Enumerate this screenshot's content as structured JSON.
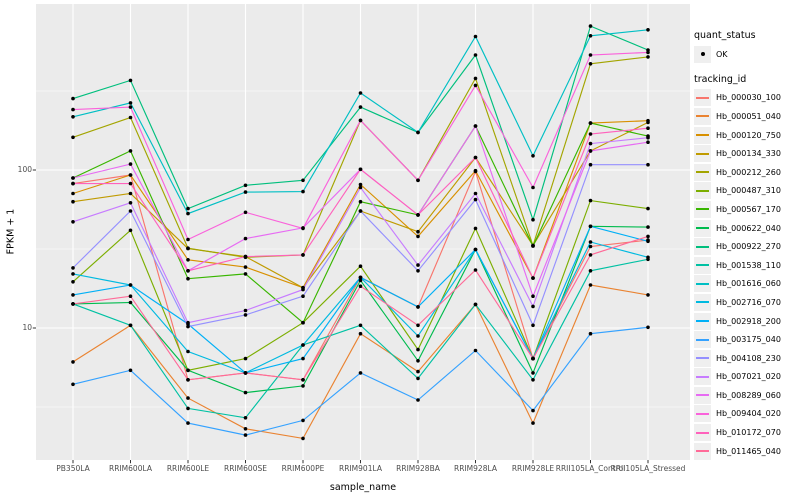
{
  "chart_data": {
    "type": "line",
    "title": "",
    "xlabel": "sample_name",
    "ylabel": "FPKM + 1",
    "y_scale": "log10",
    "grid": true,
    "panel_bg": "#ebebeb",
    "grid_color": "#ffffff",
    "point_color": "#000000",
    "y_major_ticks": [
      10,
      100
    ],
    "y_minor_ticks": [
      3.162,
      31.623,
      316.228
    ],
    "ylim": [
      1.4,
      1150
    ],
    "yticks": [
      {
        "value": 10,
        "label": "10"
      },
      {
        "value": 100,
        "label": "100"
      }
    ],
    "categories": [
      "PB350LA",
      "RRIM600LA",
      "RRIM600LE",
      "RRIM600SE",
      "RRIM600PE",
      "RRIM901LA",
      "RRIM928BA",
      "RRIM928LA",
      "RRIM928LE",
      "RRII105LA_Control",
      "RRII105LA_Stressed"
    ],
    "legend": {
      "quant_status_title": "quant_status",
      "quant_status_items": [
        "OK"
      ],
      "tracking_id_title": "tracking_id",
      "legend_position": "right"
    },
    "series": [
      {
        "name": "Hb_000030_100",
        "color": "#F8766D",
        "values": [
          82,
          93,
          4.7,
          5.2,
          4.7,
          20.9,
          13.6,
          98,
          6.4,
          32.8,
          36
        ]
      },
      {
        "name": "Hb_000051_040",
        "color": "#EA8331",
        "values": [
          6.1,
          10.4,
          3.6,
          2.3,
          2.0,
          9.2,
          5.3,
          14.1,
          2.5,
          18.7,
          16.2
        ]
      },
      {
        "name": "Hb_000120_750",
        "color": "#D89000",
        "values": [
          71,
          93,
          27,
          24.3,
          18,
          81,
          38,
          99,
          20.7,
          198,
          205
        ]
      },
      {
        "name": "Hb_000134_330",
        "color": "#C09B00",
        "values": [
          63,
          71,
          31.8,
          28.3,
          18,
          55,
          40.7,
          120,
          33.3,
          132,
          200
        ]
      },
      {
        "name": "Hb_000212_260",
        "color": "#A3A500",
        "values": [
          161,
          215,
          32,
          28,
          29,
          206,
          86,
          380,
          33.3,
          470,
          520
        ]
      },
      {
        "name": "Hb_000487_310",
        "color": "#7CAE00",
        "values": [
          19.6,
          41.5,
          5.4,
          6.4,
          10.8,
          24.6,
          7.3,
          42.7,
          6.4,
          64,
          57
        ]
      },
      {
        "name": "Hb_000567_170",
        "color": "#39B600",
        "values": [
          89,
          132,
          20.5,
          22,
          10.8,
          63,
          52,
          190,
          33,
          198,
          164
        ]
      },
      {
        "name": "Hb_000622_040",
        "color": "#00BB4E",
        "values": [
          14.2,
          14.5,
          5.4,
          3.9,
          4.3,
          20,
          6.2,
          31.4,
          5.2,
          44,
          43.5
        ]
      },
      {
        "name": "Hb_000922_270",
        "color": "#00BF7D",
        "values": [
          283,
          369,
          57,
          80,
          86,
          250,
          173,
          534,
          48.5,
          814,
          575
        ]
      },
      {
        "name": "Hb_001538_110",
        "color": "#00C1A3",
        "values": [
          14.2,
          10.4,
          3.1,
          2.7,
          7.8,
          10.4,
          4.8,
          14.1,
          4.7,
          23,
          27.2
        ]
      },
      {
        "name": "Hb_001616_060",
        "color": "#00BFC4",
        "values": [
          217,
          266,
          53,
          72.5,
          73,
          307,
          173,
          700,
          123,
          707,
          771
        ]
      },
      {
        "name": "Hb_002716_070",
        "color": "#00BAE0",
        "values": [
          22,
          18.7,
          7.1,
          5.2,
          7.8,
          20.9,
          8.9,
          31.4,
          6.4,
          35,
          28
        ]
      },
      {
        "name": "Hb_002918_200",
        "color": "#00B0F6",
        "values": [
          16.2,
          18.7,
          10.6,
          5.2,
          6.4,
          20.9,
          13.6,
          31.4,
          6.4,
          44,
          35.4
        ]
      },
      {
        "name": "Hb_003175_040",
        "color": "#35A2FF",
        "values": [
          4.4,
          5.4,
          2.5,
          2.1,
          2.6,
          5.2,
          3.5,
          7.2,
          3.0,
          9.2,
          10.1
        ]
      },
      {
        "name": "Hb_004108_230",
        "color": "#9590FF",
        "values": [
          24,
          55,
          10.2,
          12.1,
          15.9,
          55,
          23,
          65,
          10.4,
          108,
          108
        ]
      },
      {
        "name": "Hb_007021_020",
        "color": "#C77CFF",
        "values": [
          47,
          62,
          10.8,
          12.9,
          17.5,
          77.5,
          25,
          71,
          13.7,
          147,
          160
        ]
      },
      {
        "name": "Hb_008289_060",
        "color": "#E76BF3",
        "values": [
          89,
          109,
          23,
          36.8,
          43,
          101,
          52,
          190,
          15.9,
          132,
          150
        ]
      },
      {
        "name": "Hb_009404_020",
        "color": "#FA62DB",
        "values": [
          241,
          250,
          36.3,
          54,
          42.7,
          206,
          86,
          343,
          77.5,
          534,
          555
        ]
      },
      {
        "name": "Hb_010172_070",
        "color": "#FF62BC",
        "values": [
          82,
          82,
          23,
          28.3,
          29,
          101,
          52,
          120,
          20.7,
          169,
          184
        ]
      },
      {
        "name": "Hb_011465_040",
        "color": "#FF6A98",
        "values": [
          14.2,
          15.9,
          4.7,
          5.2,
          4.7,
          18.4,
          10.4,
          23.3,
          6.4,
          29,
          38
        ]
      }
    ]
  }
}
